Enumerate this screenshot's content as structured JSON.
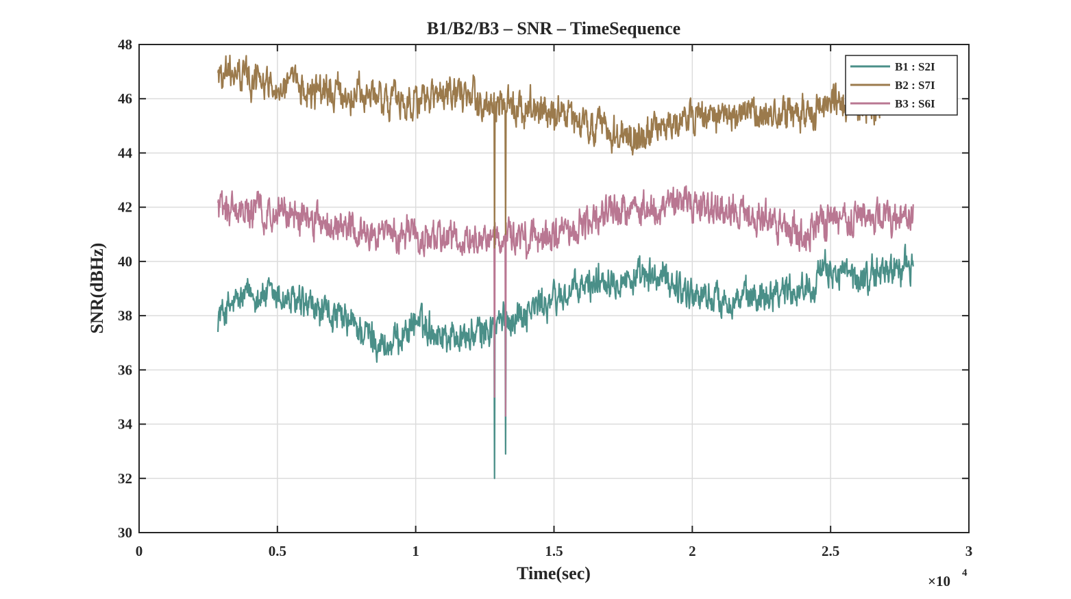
{
  "chart_data": {
    "type": "line",
    "title": "B1/B2/B3 – SNR – TimeSequence",
    "xlabel": "Time(sec)",
    "ylabel": "SNR(dBHz)",
    "x_exponent_label": "×10",
    "x_exponent_power": "4",
    "xlim": [
      0,
      30000
    ],
    "ylim": [
      30,
      48
    ],
    "x_ticks": [
      0,
      5000,
      10000,
      15000,
      20000,
      25000,
      30000
    ],
    "x_tick_labels": [
      "0",
      "0.5",
      "1",
      "1.5",
      "2",
      "2.5",
      "3"
    ],
    "y_ticks": [
      30,
      32,
      34,
      36,
      38,
      40,
      42,
      44,
      46,
      48
    ],
    "y_tick_labels": [
      "30",
      "32",
      "34",
      "36",
      "38",
      "40",
      "42",
      "44",
      "46",
      "48"
    ],
    "grid": true,
    "legend_position": "top-right",
    "noise_note": "high-frequency noise of roughly ±0.4 dBHz around each trend",
    "series": [
      {
        "name": "B1 : S2I",
        "color": "#4a8f88",
        "x_start": 2850,
        "x_end": 28000,
        "trend": [
          [
            2850,
            38.0
          ],
          [
            4000,
            38.8
          ],
          [
            5000,
            38.7
          ],
          [
            6000,
            38.3
          ],
          [
            7000,
            38.0
          ],
          [
            8000,
            37.5
          ],
          [
            9000,
            36.8
          ],
          [
            10000,
            37.8
          ],
          [
            11000,
            37.3
          ],
          [
            12000,
            37.2
          ],
          [
            13000,
            37.7
          ],
          [
            14000,
            38.2
          ],
          [
            15000,
            38.6
          ],
          [
            16000,
            39.0
          ],
          [
            17000,
            39.5
          ],
          [
            18000,
            39.3
          ],
          [
            19000,
            39.4
          ],
          [
            20000,
            38.8
          ],
          [
            21000,
            38.6
          ],
          [
            22000,
            38.6
          ],
          [
            23000,
            39.0
          ],
          [
            24000,
            39.0
          ],
          [
            25000,
            39.7
          ],
          [
            26000,
            39.3
          ],
          [
            27000,
            39.7
          ],
          [
            28000,
            39.8
          ]
        ],
        "dropouts": [
          {
            "x": 12850,
            "to": 32.0
          },
          {
            "x": 13250,
            "to": 32.9
          }
        ]
      },
      {
        "name": "B2 : S7I",
        "color": "#9b7a4c",
        "x_start": 2850,
        "x_end": 26800,
        "trend": [
          [
            2850,
            47.0
          ],
          [
            4000,
            46.8
          ],
          [
            5000,
            46.5
          ],
          [
            6000,
            46.4
          ],
          [
            7000,
            46.2
          ],
          [
            8000,
            46.1
          ],
          [
            9000,
            46.0
          ],
          [
            10000,
            45.9
          ],
          [
            11000,
            46.0
          ],
          [
            12000,
            46.1
          ],
          [
            13000,
            45.6
          ],
          [
            14000,
            45.8
          ],
          [
            15000,
            45.5
          ],
          [
            16000,
            45.0
          ],
          [
            17000,
            44.8
          ],
          [
            18000,
            44.5
          ],
          [
            19000,
            45.0
          ],
          [
            20000,
            45.3
          ],
          [
            21000,
            45.4
          ],
          [
            22000,
            45.3
          ],
          [
            23000,
            45.5
          ],
          [
            24000,
            45.4
          ],
          [
            25000,
            45.9
          ],
          [
            26000,
            45.7
          ],
          [
            26800,
            45.6
          ]
        ],
        "dropouts": [
          {
            "x": 12850,
            "to": 40.5
          },
          {
            "x": 13250,
            "to": 41.0
          }
        ]
      },
      {
        "name": "B3 : S6I",
        "color": "#b97792",
        "x_start": 2850,
        "x_end": 28000,
        "trend": [
          [
            2850,
            42.0
          ],
          [
            4000,
            41.9
          ],
          [
            5000,
            41.8
          ],
          [
            6000,
            41.6
          ],
          [
            7000,
            41.4
          ],
          [
            8000,
            41.1
          ],
          [
            9000,
            40.9
          ],
          [
            10000,
            40.9
          ],
          [
            11000,
            40.8
          ],
          [
            12000,
            40.7
          ],
          [
            13000,
            40.8
          ],
          [
            14000,
            40.8
          ],
          [
            15000,
            41.0
          ],
          [
            16000,
            41.3
          ],
          [
            17000,
            41.8
          ],
          [
            18000,
            41.9
          ],
          [
            19000,
            42.0
          ],
          [
            20000,
            42.1
          ],
          [
            21000,
            42.0
          ],
          [
            22000,
            41.8
          ],
          [
            23000,
            41.5
          ],
          [
            24000,
            40.9
          ],
          [
            25000,
            41.5
          ],
          [
            26000,
            41.6
          ],
          [
            27000,
            41.7
          ],
          [
            28000,
            41.7
          ]
        ],
        "dropouts": [
          {
            "x": 12850,
            "to": 35.0
          },
          {
            "x": 13250,
            "to": 34.3
          }
        ]
      }
    ]
  }
}
